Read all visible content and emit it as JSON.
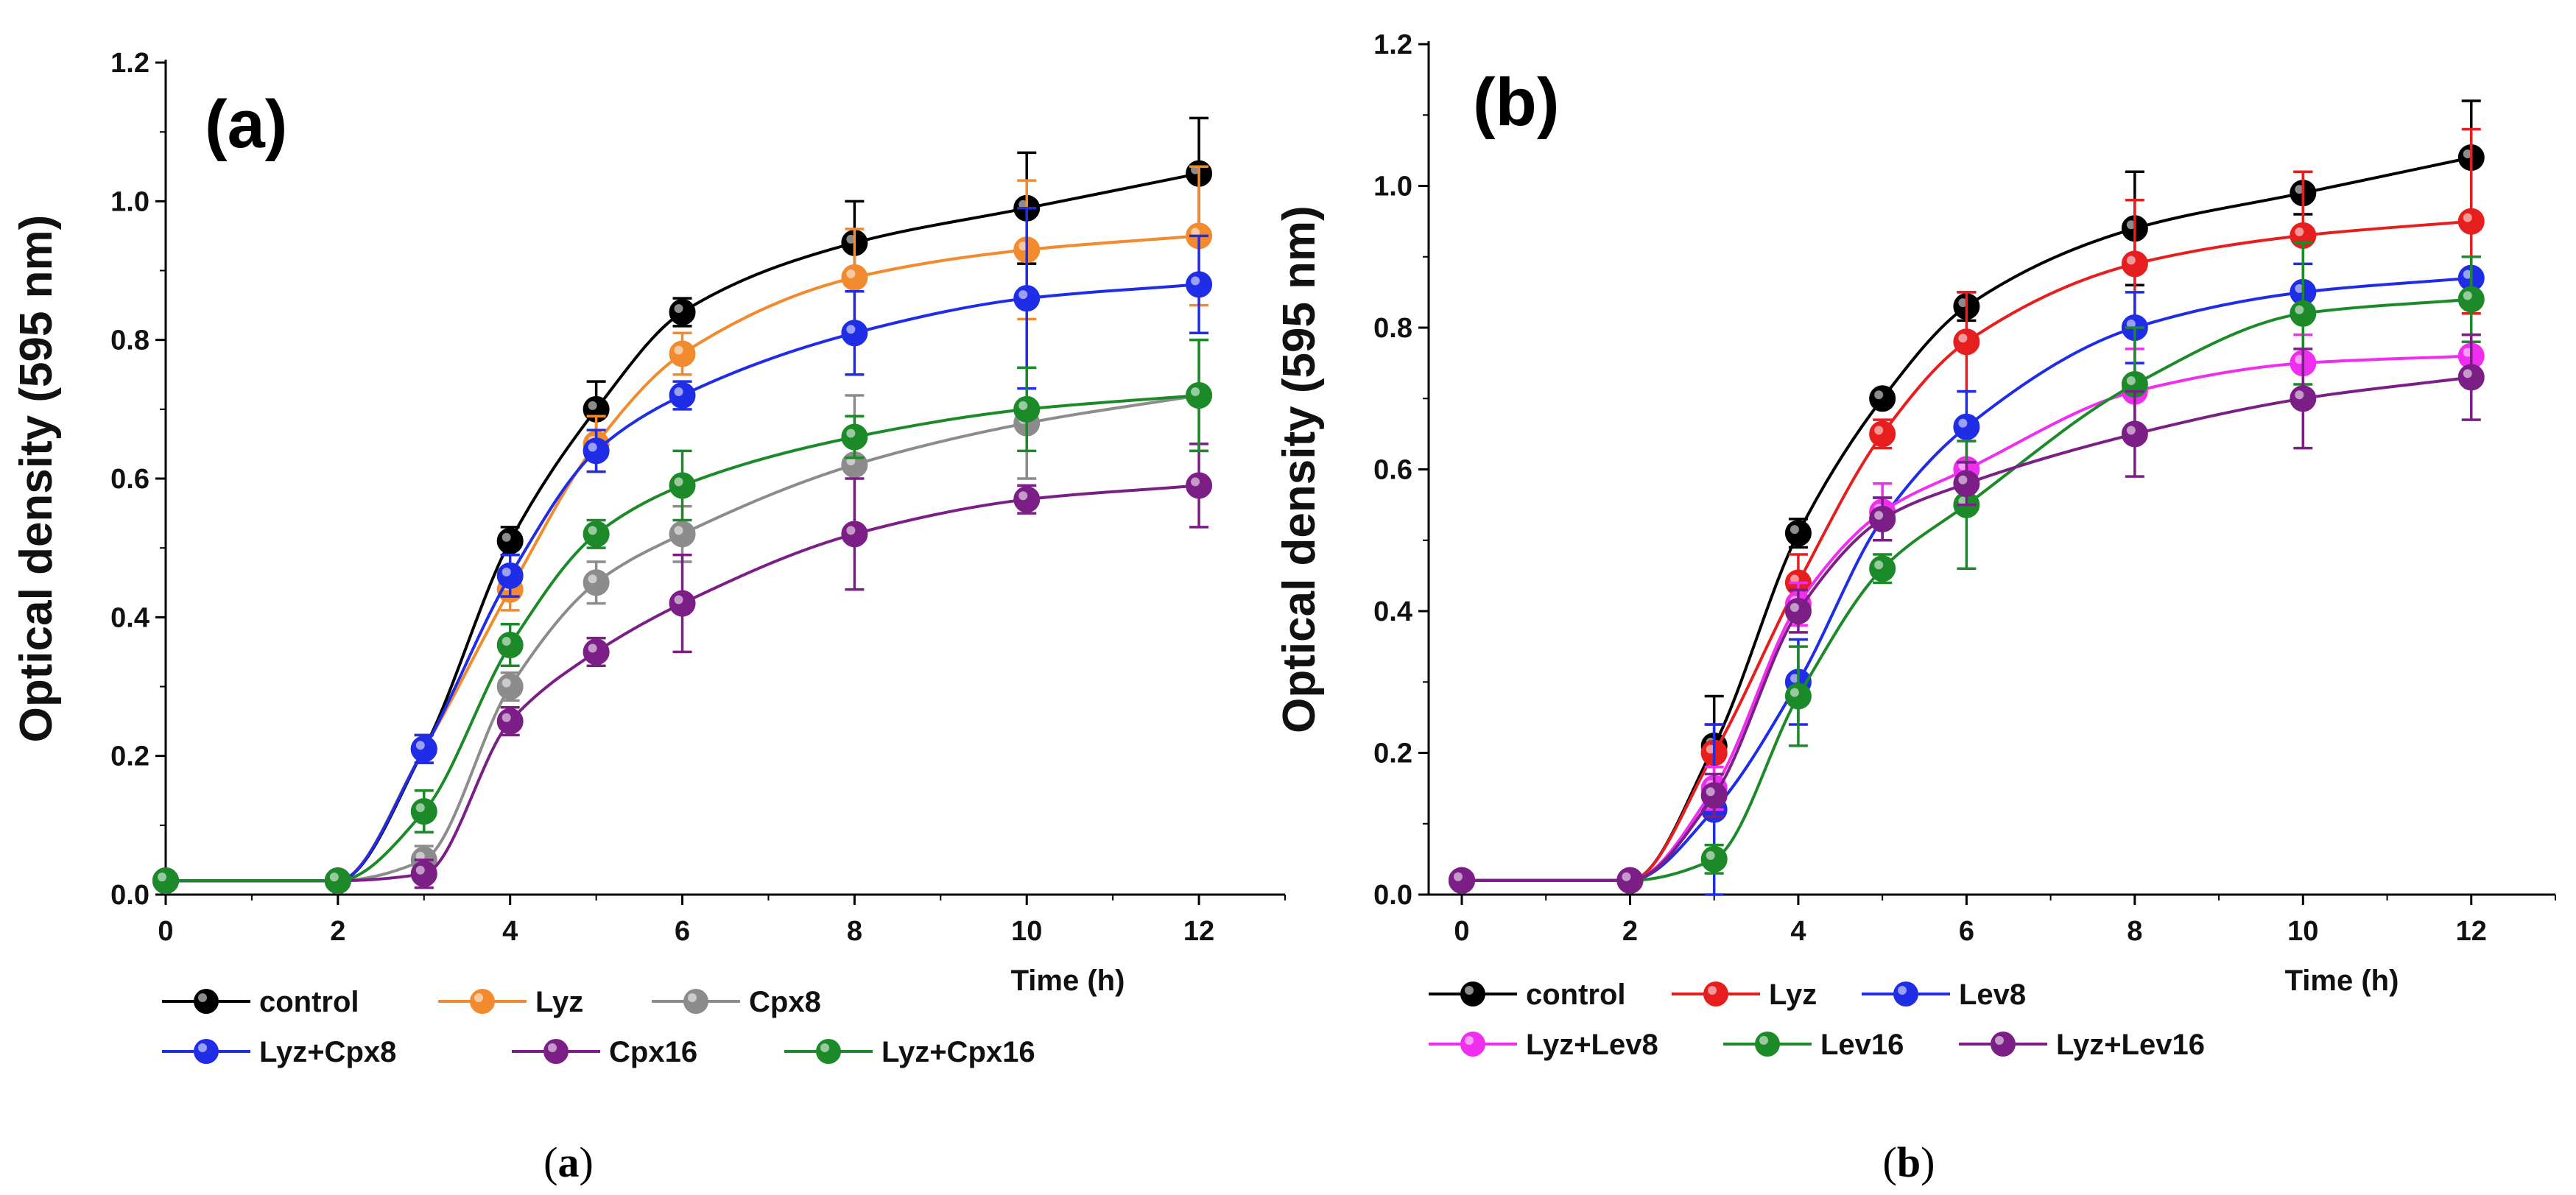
{
  "chart_data": [
    {
      "type": "line",
      "panel_label": "(a)",
      "caption": {
        "open": "(",
        "letter": "a",
        "close": ")"
      },
      "xlabel": "Time (h)",
      "ylabel": "Optical density (595 nm)",
      "xlim": [
        0,
        13
      ],
      "ylim": [
        0,
        1.2
      ],
      "xticks": [
        0,
        2,
        4,
        6,
        8,
        10,
        12
      ],
      "yticks": [
        0.0,
        0.2,
        0.4,
        0.6,
        0.8,
        1.0,
        1.2
      ],
      "ytick_labels": [
        "0.0",
        "0.2",
        "0.4",
        "0.6",
        "0.8",
        "1.0",
        "1.2"
      ],
      "grid": false,
      "legend_position": "bottom",
      "series": [
        {
          "name": "control",
          "color": "#000000",
          "x": [
            0,
            2,
            3,
            4,
            5,
            6,
            8,
            10,
            12
          ],
          "y": [
            0.02,
            0.02,
            0.21,
            0.51,
            0.7,
            0.84,
            0.94,
            0.99,
            1.04
          ],
          "err": [
            0.01,
            0.01,
            0.02,
            0.02,
            0.04,
            0.02,
            0.06,
            0.08,
            0.08
          ]
        },
        {
          "name": "Lyz",
          "color": "#f28a2e",
          "x": [
            0,
            2,
            3,
            4,
            5,
            6,
            8,
            10,
            12
          ],
          "y": [
            0.02,
            0.02,
            0.21,
            0.44,
            0.65,
            0.78,
            0.89,
            0.93,
            0.95
          ],
          "err": [
            0.01,
            0.01,
            0.02,
            0.03,
            0.04,
            0.03,
            0.07,
            0.1,
            0.1
          ]
        },
        {
          "name": "Cpx8",
          "color": "#8c8c8c",
          "x": [
            0,
            2,
            3,
            4,
            5,
            6,
            8,
            10,
            12
          ],
          "y": [
            0.02,
            0.02,
            0.05,
            0.3,
            0.45,
            0.52,
            0.62,
            0.68,
            0.72
          ],
          "err": [
            0.01,
            0.01,
            0.02,
            0.02,
            0.03,
            0.04,
            0.1,
            0.08,
            0.08
          ]
        },
        {
          "name": "Lyz+Cpx8",
          "color": "#1f2ee6",
          "x": [
            0,
            2,
            3,
            4,
            5,
            6,
            8,
            10,
            12
          ],
          "y": [
            0.02,
            0.02,
            0.21,
            0.46,
            0.64,
            0.72,
            0.81,
            0.86,
            0.88
          ],
          "err": [
            0.01,
            0.01,
            0.02,
            0.03,
            0.03,
            0.02,
            0.06,
            0.13,
            0.07
          ]
        },
        {
          "name": "Cpx16",
          "color": "#7b1f86",
          "x": [
            0,
            2,
            3,
            4,
            5,
            6,
            8,
            10,
            12
          ],
          "y": [
            0.02,
            0.02,
            0.03,
            0.25,
            0.35,
            0.42,
            0.52,
            0.57,
            0.59
          ],
          "err": [
            0.01,
            0.01,
            0.02,
            0.02,
            0.02,
            0.07,
            0.08,
            0.02,
            0.06
          ]
        },
        {
          "name": "Lyz+Cpx16",
          "color": "#1d8a2a",
          "x": [
            0,
            2,
            3,
            4,
            5,
            6,
            8,
            10,
            12
          ],
          "y": [
            0.02,
            0.02,
            0.12,
            0.36,
            0.52,
            0.59,
            0.66,
            0.7,
            0.72
          ],
          "err": [
            0.01,
            0.01,
            0.03,
            0.03,
            0.02,
            0.05,
            0.03,
            0.06,
            0.08
          ]
        }
      ]
    },
    {
      "type": "line",
      "panel_label": "(b)",
      "caption": {
        "open": "(",
        "letter": "b",
        "close": ")"
      },
      "xlabel": "Time (h)",
      "ylabel": "Optical density (595 nm)",
      "xlim": [
        0,
        13
      ],
      "ylim": [
        0,
        1.2
      ],
      "xticks": [
        0,
        2,
        4,
        6,
        8,
        10,
        12
      ],
      "yticks": [
        0.0,
        0.2,
        0.4,
        0.6,
        0.8,
        1.0,
        1.2
      ],
      "ytick_labels": [
        "0.0",
        "0.2",
        "0.4",
        "0.6",
        "0.8",
        "1.0",
        "1.2"
      ],
      "grid": false,
      "legend_position": "bottom",
      "series": [
        {
          "name": "control",
          "color": "#000000",
          "x": [
            0,
            2,
            3,
            4,
            5,
            6,
            8,
            10,
            12
          ],
          "y": [
            0.02,
            0.02,
            0.21,
            0.51,
            0.7,
            0.83,
            0.94,
            0.99,
            1.04
          ],
          "err": [
            0.01,
            0.01,
            0.07,
            0.02,
            0.01,
            0.02,
            0.08,
            0.03,
            0.08
          ]
        },
        {
          "name": "Lyz",
          "color": "#e61e1e",
          "x": [
            0,
            2,
            3,
            4,
            5,
            6,
            8,
            10,
            12
          ],
          "y": [
            0.02,
            0.02,
            0.2,
            0.44,
            0.65,
            0.78,
            0.89,
            0.93,
            0.95
          ],
          "err": [
            0.01,
            0.01,
            0.04,
            0.04,
            0.02,
            0.07,
            0.09,
            0.09,
            0.13
          ]
        },
        {
          "name": "Lev8",
          "color": "#1f2ee6",
          "x": [
            0,
            2,
            3,
            4,
            5,
            6,
            8,
            10,
            12
          ],
          "y": [
            0.02,
            0.02,
            0.12,
            0.3,
            0.53,
            0.66,
            0.8,
            0.85,
            0.87
          ],
          "err": [
            0.01,
            0.01,
            0.12,
            0.06,
            0.03,
            0.05,
            0.05,
            0.04,
            0.03
          ]
        },
        {
          "name": "Lyz+Lev8",
          "color": "#f02ef0",
          "x": [
            0,
            2,
            3,
            4,
            5,
            6,
            8,
            10,
            12
          ],
          "y": [
            0.02,
            0.02,
            0.15,
            0.41,
            0.54,
            0.6,
            0.71,
            0.75,
            0.76
          ],
          "err": [
            0.01,
            0.01,
            0.03,
            0.03,
            0.04,
            0.04,
            0.06,
            0.04,
            0.03
          ]
        },
        {
          "name": "Lev16",
          "color": "#1d8a2a",
          "x": [
            0,
            2,
            3,
            4,
            5,
            6,
            8,
            10,
            12
          ],
          "y": [
            0.02,
            0.02,
            0.05,
            0.28,
            0.46,
            0.55,
            0.72,
            0.82,
            0.84
          ],
          "err": [
            0.01,
            0.01,
            0.02,
            0.07,
            0.02,
            0.09,
            0.08,
            0.1,
            0.06
          ]
        },
        {
          "name": "Lyz+Lev16",
          "color": "#7b1f86",
          "x": [
            0,
            2,
            3,
            4,
            5,
            6,
            8,
            10,
            12
          ],
          "y": [
            0.02,
            0.02,
            0.14,
            0.4,
            0.53,
            0.58,
            0.65,
            0.7,
            0.73
          ],
          "err": [
            0.01,
            0.01,
            0.03,
            0.03,
            0.03,
            0.03,
            0.06,
            0.07,
            0.06
          ]
        }
      ]
    }
  ]
}
